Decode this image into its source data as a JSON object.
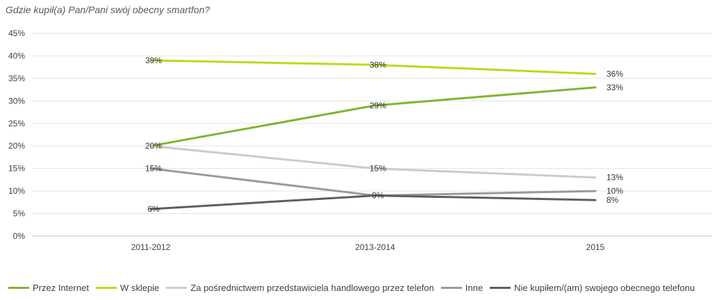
{
  "chart_data": {
    "type": "line",
    "title": "Gdzie kupił(a) Pan/Pani swój obecny smartfon?",
    "xlabel": "",
    "ylabel": "",
    "ylim": [
      0,
      45
    ],
    "y_ticks": [
      "0%",
      "5%",
      "10%",
      "15%",
      "20%",
      "25%",
      "30%",
      "35%",
      "40%",
      "45%"
    ],
    "grid": true,
    "legend_position": "bottom",
    "categories": [
      "2011-2012",
      "2013-2014",
      "2015"
    ],
    "series": [
      {
        "name": "Przez Internet",
        "color": "#7fb52e",
        "values": [
          20,
          29,
          33
        ],
        "labels": [
          "20%",
          "29%",
          "33%"
        ]
      },
      {
        "name": "W sklepie",
        "color": "#c3d51d",
        "values": [
          39,
          38,
          36
        ],
        "labels": [
          "39%",
          "38%",
          "36%"
        ]
      },
      {
        "name": "Za pośrednictwem przedstawiciela handlowego przez telefon",
        "color": "#cbcbcb",
        "values": [
          20,
          15,
          13
        ],
        "labels": [
          "",
          "15%",
          "13%"
        ]
      },
      {
        "name": "Inne",
        "color": "#9a9a9a",
        "values": [
          15,
          9,
          10
        ],
        "labels": [
          "15%",
          "9%",
          "10%"
        ]
      },
      {
        "name": "Nie kupiłem/(am) swojego obecnego telefonu",
        "color": "#5e5e5e",
        "values": [
          6,
          9,
          8
        ],
        "labels": [
          "6%",
          "",
          "8%"
        ]
      }
    ]
  }
}
